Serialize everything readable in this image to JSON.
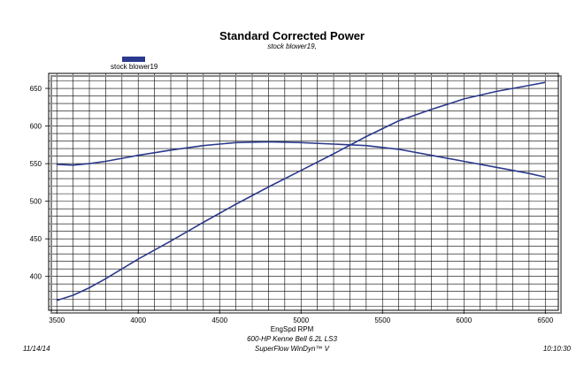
{
  "chart_data": {
    "type": "line",
    "title": "Standard Corrected Power",
    "subtitle": "stock blower19,",
    "legend": [
      "stock blower19"
    ],
    "legend_position": "top-left",
    "xlabel": "EngSpd  RPM",
    "xlim": [
      3450,
      6580
    ],
    "ylim": [
      355,
      670
    ],
    "xticks": [
      3500,
      4000,
      4500,
      5000,
      5500,
      6000,
      6500
    ],
    "yticks": [
      400,
      450,
      500,
      550,
      600,
      650
    ],
    "grid": true,
    "line_color": "#2b3a8c",
    "series": [
      {
        "name": "stock blower19",
        "x": [
          3500,
          3600,
          3700,
          3800,
          3900,
          4000,
          4200,
          4400,
          4600,
          4800,
          5000,
          5200,
          5400,
          5600,
          5800,
          6000,
          6200,
          6400,
          6500
        ],
        "y": [
          549,
          548,
          550,
          553,
          557,
          561,
          568,
          574,
          578,
          579,
          578,
          576,
          574,
          569,
          561,
          553,
          545,
          537,
          532
        ]
      },
      {
        "name": "",
        "x": [
          3500,
          3600,
          3700,
          3800,
          3900,
          4000,
          4200,
          4400,
          4600,
          4800,
          5000,
          5200,
          5400,
          5600,
          5800,
          6000,
          6200,
          6400,
          6500
        ],
        "y": [
          368,
          375,
          385,
          397,
          410,
          423,
          447,
          472,
          496,
          519,
          541,
          563,
          586,
          607,
          622,
          636,
          646,
          654,
          658
        ]
      }
    ]
  },
  "footer": {
    "line1": "600-HP Kenne Bell 6.2L LS3",
    "line2": "SuperFlow WinDyn™ V",
    "date": "11/14/14",
    "time": "10:10:30"
  }
}
